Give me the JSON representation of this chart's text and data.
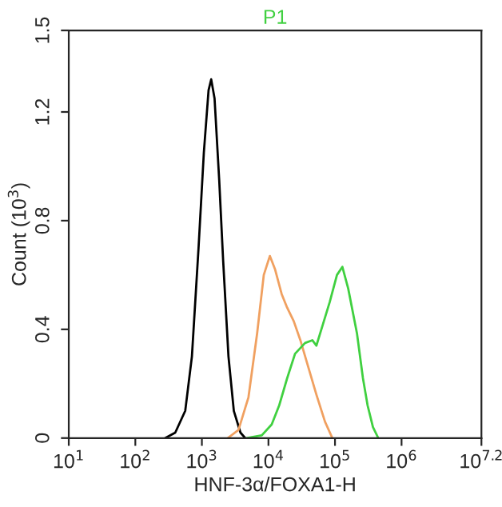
{
  "chart_data": {
    "type": "line",
    "title": "P1",
    "xlabel": "HNF-3α/FOXA1-H",
    "ylabel": "Count (10$^{3}$)",
    "log": "x",
    "xlim": [
      10,
      15848932
    ],
    "xticks": [
      {
        "value": 10,
        "label": "10$^{1}$"
      },
      {
        "value": 100,
        "label": "10$^{2}$"
      },
      {
        "value": 1000,
        "label": "10$^{3}$"
      },
      {
        "value": 10000,
        "label": "10$^{4}$"
      },
      {
        "value": 100000,
        "label": "10$^{5}$"
      },
      {
        "value": 1000000,
        "label": "10$^{6}$"
      },
      {
        "value": 15848932,
        "label": "10$^{7.2}$"
      }
    ],
    "ylim": [
      0,
      1.5
    ],
    "yticks": [
      0,
      0.4,
      0.8,
      1.2,
      1.5
    ],
    "grid": false,
    "legend": false,
    "marker": "none",
    "line_style": "solid",
    "series": [
      {
        "color": "#000000",
        "x": [
          282,
          398,
          562,
          708,
          891,
          1070,
          1260,
          1380,
          1550,
          1820,
          2090,
          2510,
          3020,
          3800,
          4470
        ],
        "values": [
          0,
          0.02,
          0.1,
          0.3,
          0.7,
          1.05,
          1.28,
          1.32,
          1.25,
          0.95,
          0.65,
          0.3,
          0.1,
          0.02,
          0
        ]
      },
      {
        "color": "#f0a060",
        "x": [
          2450,
          3550,
          5010,
          6760,
          8510,
          10500,
          12600,
          15800,
          19100,
          24000,
          30200,
          39800,
          52500,
          70800,
          91200
        ],
        "values": [
          0,
          0.03,
          0.15,
          0.385,
          0.6,
          0.67,
          0.62,
          0.53,
          0.48,
          0.43,
          0.36,
          0.26,
          0.16,
          0.06,
          0
        ]
      },
      {
        "color": "#40d040",
        "x": [
          4680,
          7940,
          11200,
          14500,
          19100,
          25100,
          35500,
          45700,
          52500,
          66100,
          83200,
          107000,
          129000,
          158000,
          214000,
          263000,
          309000,
          372000,
          447000
        ],
        "values": [
          0,
          0.01,
          0.05,
          0.12,
          0.22,
          0.31,
          0.35,
          0.36,
          0.34,
          0.42,
          0.5,
          0.6,
          0.63,
          0.55,
          0.385,
          0.22,
          0.12,
          0.04,
          0
        ]
      }
    ]
  }
}
